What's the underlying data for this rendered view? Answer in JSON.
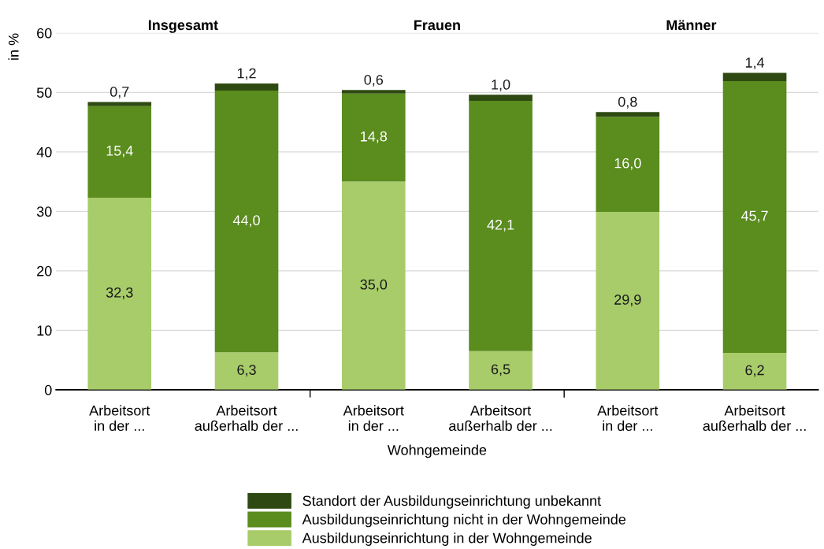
{
  "chart_data": {
    "type": "bar",
    "stacked": true,
    "categories": [
      "Arbeitsort\nin der ...",
      "Arbeitsort\naußerhalb der ...",
      "Arbeitsort\nin der ...",
      "Arbeitsort\naußerhalb der ...",
      "Arbeitsort\nin der ...",
      "Arbeitsort\naußerhalb der ..."
    ],
    "series": [
      {
        "name": "Ausbildungseinrichtung in der Wohngemeinde",
        "color": "#a8cc6a",
        "values": [
          32.3,
          6.3,
          35.0,
          6.5,
          29.9,
          6.2
        ],
        "value_labels": [
          "32,3",
          "6,3",
          "35,0",
          "6,5",
          "29,9",
          "6,2"
        ]
      },
      {
        "name": "Ausbildungseinrichtung nicht in der Wohngemeinde",
        "color": "#5a8c1e",
        "values": [
          15.4,
          44.0,
          14.8,
          42.1,
          16.0,
          45.7
        ],
        "value_labels": [
          "15,4",
          "44,0",
          "14,8",
          "42,1",
          "16,0",
          "45,7"
        ]
      },
      {
        "name": "Standort der Ausbildungseinrichtung unbekannt",
        "color": "#2e4a12",
        "values": [
          0.7,
          1.2,
          0.6,
          1.0,
          0.8,
          1.4
        ],
        "value_labels": [
          "0,7",
          "1,2",
          "0,6",
          "1,0",
          "0,8",
          "1,4"
        ]
      }
    ],
    "xlabel": "Wohngemeinde",
    "ylabel": "in %",
    "annotations": [
      "Insgesamt",
      "Frauen",
      "Männer"
    ],
    "ylim": [
      0,
      60
    ],
    "yticks": [
      0,
      10,
      20,
      30,
      40,
      50,
      60
    ],
    "grid": "y",
    "legend": "bottom"
  }
}
